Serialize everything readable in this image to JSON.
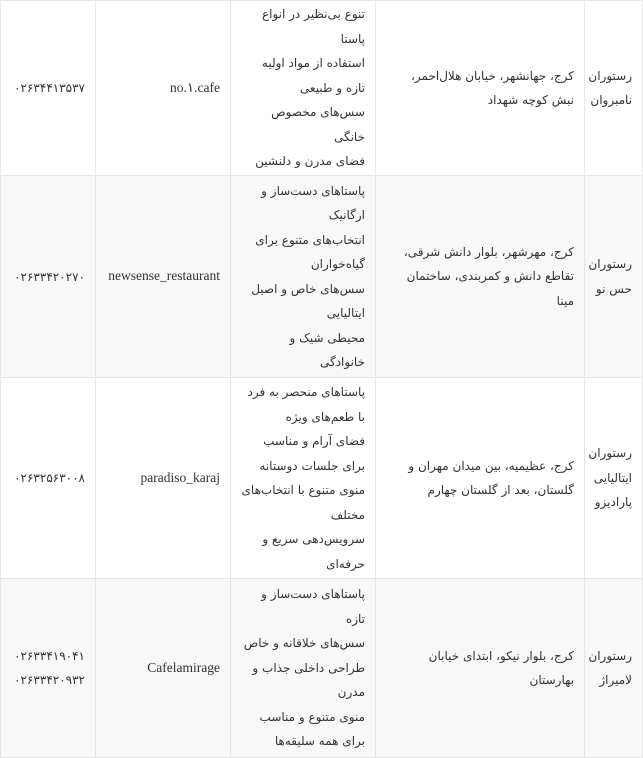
{
  "rows": [
    {
      "name": "رستوران نامبروان",
      "address": "کرج، جهانشهر، خیابان هلال‌احمر، نبش کوچه شهداد",
      "features": [
        "تنوع بی‌نظیر در انواع پاستا",
        "استفاده از مواد اولیه تازه و طبیعی",
        "سس‌های مخصوص خانگی",
        "فضای مدرن و دلنشین"
      ],
      "instagram": "no.۱.cafe",
      "phones": [
        "۰۲۶۳۴۴۱۳۵۳۷"
      ]
    },
    {
      "name": "رستوران حس نو",
      "address": "کرج، مهرشهر، بلوار دانش شرقی، تقاطع دانش و کمربندی، ساختمان مینا",
      "features": [
        "پاستاهای دست‌ساز و ارگانیک",
        "انتخاب‌های متنوع برای گیاه‌خواران",
        "سس‌های خاص و اصیل ایتالیایی",
        "محیطی شیک و خانوادگی"
      ],
      "instagram": "newsense_restaurant",
      "phones": [
        "۰۲۶۳۳۴۲۰۲۷۰"
      ]
    },
    {
      "name": "رستوران ایتالیایی پارادیزو",
      "address": "کرج، عظیمیه، بین میدان مهران و گلستان، بعد از گلستان چهارم",
      "features": [
        "پاستاهای منحصر به فرد با طعم‌های ویژه",
        "فضای آرام و مناسب برای جلسات دوستانه",
        "منوی متنوع با انتخاب‌های مختلف",
        "سرویس‌دهی سریع و حرفه‌ای"
      ],
      "instagram": "paradiso_karaj",
      "phones": [
        "۰۲۶۳۲۵۶۳۰۰۸"
      ]
    },
    {
      "name": "رستوران لامیراژ",
      "address": "کرج، بلوار نیکو، ابتدای خیابان بهارستان",
      "features": [
        "پاستاهای دست‌ساز و تازه",
        "سس‌های خلاقانه و خاص",
        "طراحی داخلی جذاب و مدرن",
        "منوی متنوع و مناسب برای همه سلیقه‌ها"
      ],
      "instagram": "Cafelamirage",
      "phones": [
        "۰۲۶۳۳۴۱۹۰۴۱",
        "۰۲۶۳۳۴۲۰۹۳۲"
      ]
    }
  ]
}
